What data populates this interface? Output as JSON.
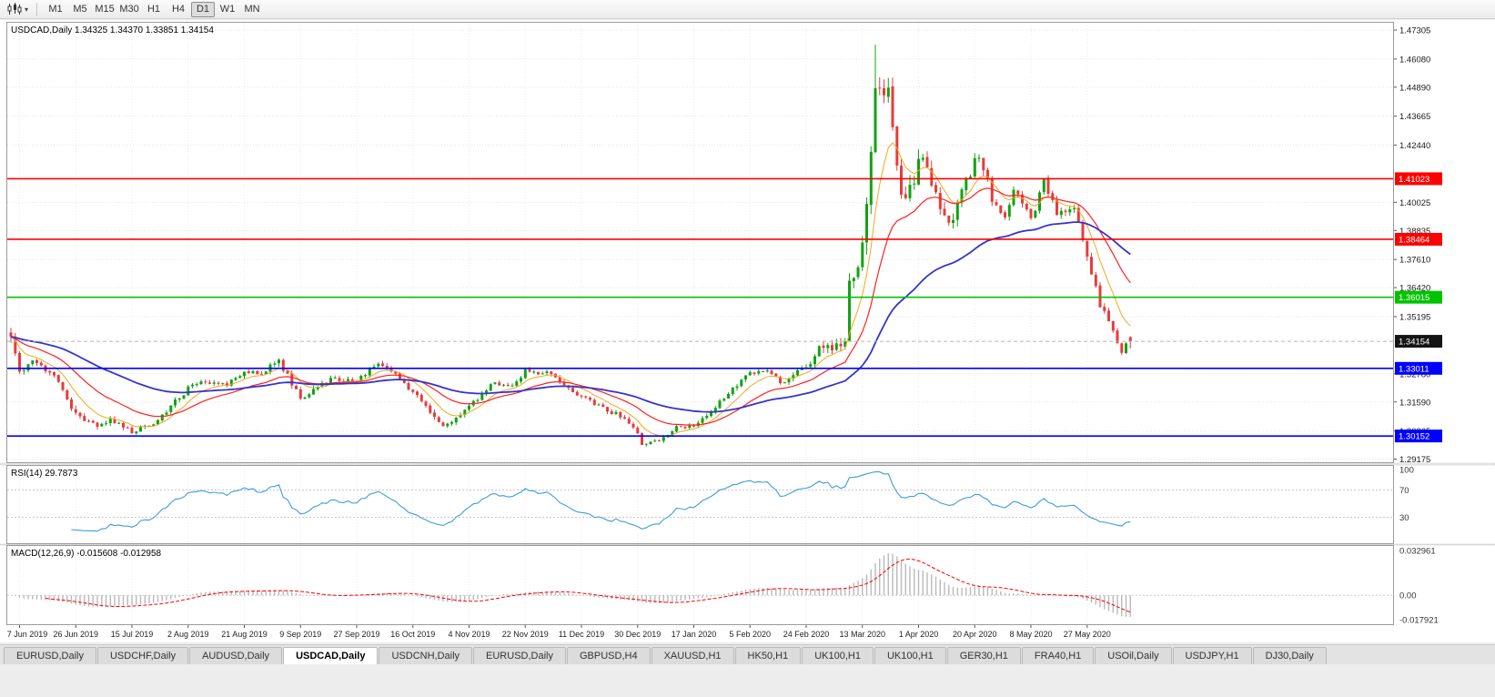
{
  "toolbar": {
    "timeframes": [
      {
        "label": "M1"
      },
      {
        "label": "M5"
      },
      {
        "label": "M15"
      },
      {
        "label": "M30"
      },
      {
        "label": "H1"
      },
      {
        "label": "H4"
      },
      {
        "label": "D1",
        "active": true
      },
      {
        "label": "W1"
      },
      {
        "label": "MN"
      }
    ]
  },
  "tabbar": {
    "tabs": [
      {
        "label": "EURUSD,Daily"
      },
      {
        "label": "USDCHF,Daily"
      },
      {
        "label": "AUDUSD,Daily"
      },
      {
        "label": "USDCAD,Daily",
        "active": true
      },
      {
        "label": "USDCNH,Daily"
      },
      {
        "label": "EURUSD,Daily"
      },
      {
        "label": "GBPUSD,H4"
      },
      {
        "label": "XAUUSD,H1"
      },
      {
        "label": "HK50,H1"
      },
      {
        "label": "UK100,H1"
      },
      {
        "label": "UK100,H1"
      },
      {
        "label": "GER30,H1"
      },
      {
        "label": "FRA40,H1"
      },
      {
        "label": "USOil,Daily"
      },
      {
        "label": "USDJPY,H1"
      },
      {
        "label": "DJ30,Daily"
      }
    ]
  },
  "chart_data": {
    "type": "candlestick",
    "symbol_header": "USDCAD,Daily",
    "ohlc": {
      "open": "1.34325",
      "high": "1.34370",
      "low": "1.33851",
      "close": "1.34154"
    },
    "x_labels": [
      "7 Jun 2019",
      "26 Jun 2019",
      "15 Jul 2019",
      "2 Aug 2019",
      "21 Aug 2019",
      "9 Sep 2019",
      "27 Sep 2019",
      "16 Oct 2019",
      "4 Nov 2019",
      "22 Nov 2019",
      "11 Dec 2019",
      "30 Dec 2019",
      "17 Jan 2020",
      "5 Feb 2020",
      "24 Feb 2020",
      "13 Mar 2020",
      "1 Apr 2020",
      "20 Apr 2020",
      "8 May 2020",
      "27 May 2020"
    ],
    "y_axis": {
      "ticks": [
        "1.47305",
        "1.46080",
        "1.44890",
        "1.43665",
        "1.42440",
        "1.40025",
        "1.38835",
        "1.37610",
        "1.36420",
        "1.35195",
        "1.32780",
        "1.31590",
        "1.30365",
        "1.29175"
      ],
      "view_range": [
        1.29043,
        1.47613
      ]
    },
    "hlines": [
      {
        "price": "1.41023",
        "color": "#ff0000"
      },
      {
        "price": "1.38464",
        "color": "#ff0000"
      },
      {
        "price": "1.36015",
        "color": "#00c400"
      },
      {
        "price": "1.33011",
        "color": "#0000ff"
      },
      {
        "price": "1.30152",
        "color": "#0000ff"
      }
    ],
    "current_price": {
      "value": "1.34154",
      "box_color": "#141414"
    },
    "candles": {
      "count": 260,
      "bull_color": "#12a212",
      "bear_color": "#e63c3c",
      "last_ohlc": [
        1.34325,
        1.3437,
        1.33851,
        1.34154
      ],
      "spike": {
        "index": 200,
        "high": 1.4668
      },
      "anchors": [
        [
          0,
          1.345,
          0.0045
        ],
        [
          2,
          1.329,
          0.0045
        ],
        [
          5,
          1.333,
          0.003
        ],
        [
          10,
          1.328,
          0.003
        ],
        [
          15,
          1.3105,
          0.003
        ],
        [
          20,
          1.305,
          0.0025
        ],
        [
          23,
          1.3085,
          0.0025
        ],
        [
          28,
          1.3035,
          0.0022
        ],
        [
          33,
          1.307,
          0.0022
        ],
        [
          38,
          1.316,
          0.0025
        ],
        [
          41,
          1.3215,
          0.0025
        ],
        [
          45,
          1.3245,
          0.0022
        ],
        [
          50,
          1.323,
          0.0022
        ],
        [
          54,
          1.329,
          0.0025
        ],
        [
          58,
          1.3285,
          0.0025
        ],
        [
          62,
          1.3335,
          0.003
        ],
        [
          67,
          1.317,
          0.003
        ],
        [
          72,
          1.323,
          0.0025
        ],
        [
          75,
          1.326,
          0.0022
        ],
        [
          80,
          1.3245,
          0.0022
        ],
        [
          85,
          1.333,
          0.0025
        ],
        [
          89,
          1.328,
          0.0025
        ],
        [
          93,
          1.32,
          0.0025
        ],
        [
          100,
          1.306,
          0.0025
        ],
        [
          103,
          1.309,
          0.0022
        ],
        [
          106,
          1.314,
          0.0022
        ],
        [
          112,
          1.3245,
          0.0022
        ],
        [
          116,
          1.322,
          0.002
        ],
        [
          119,
          1.329,
          0.002
        ],
        [
          124,
          1.328,
          0.002
        ],
        [
          128,
          1.324,
          0.0022
        ],
        [
          132,
          1.318,
          0.0022
        ],
        [
          137,
          1.313,
          0.002
        ],
        [
          141,
          1.31,
          0.002
        ],
        [
          144,
          1.306,
          0.002
        ],
        [
          146,
          1.2985,
          0.0018
        ],
        [
          150,
          1.2995,
          0.0018
        ],
        [
          154,
          1.305,
          0.0018
        ],
        [
          158,
          1.3055,
          0.0018
        ],
        [
          163,
          1.314,
          0.002
        ],
        [
          168,
          1.323,
          0.0022
        ],
        [
          171,
          1.328,
          0.0022
        ],
        [
          175,
          1.3295,
          0.002
        ],
        [
          178,
          1.324,
          0.002
        ],
        [
          184,
          1.3305,
          0.0028
        ],
        [
          188,
          1.3405,
          0.004
        ],
        [
          191,
          1.339,
          0.004
        ],
        [
          193,
          1.342,
          0.005
        ],
        [
          194,
          1.366,
          0.007
        ],
        [
          196,
          1.376,
          0.008
        ],
        [
          197,
          1.383,
          0.009
        ],
        [
          198,
          1.403,
          0.01
        ],
        [
          199,
          1.423,
          0.011
        ],
        [
          200,
          1.45,
          0.012
        ],
        [
          201,
          1.452,
          0.011
        ],
        [
          202,
          1.444,
          0.01
        ],
        [
          203,
          1.446,
          0.009
        ],
        [
          206,
          1.4,
          0.009
        ],
        [
          208,
          1.406,
          0.008
        ],
        [
          211,
          1.42,
          0.007
        ],
        [
          214,
          1.403,
          0.006
        ],
        [
          217,
          1.39,
          0.0055
        ],
        [
          220,
          1.404,
          0.005
        ],
        [
          224,
          1.421,
          0.005
        ],
        [
          227,
          1.402,
          0.0045
        ],
        [
          230,
          1.394,
          0.004
        ],
        [
          232,
          1.407,
          0.004
        ],
        [
          236,
          1.392,
          0.0038
        ],
        [
          239,
          1.409,
          0.0038
        ],
        [
          242,
          1.395,
          0.0035
        ],
        [
          246,
          1.3985,
          0.003
        ],
        [
          249,
          1.376,
          0.0035
        ],
        [
          252,
          1.357,
          0.0035
        ],
        [
          254,
          1.35,
          0.003
        ],
        [
          256,
          1.342,
          0.003
        ],
        [
          257,
          1.336,
          0.0028
        ],
        [
          258,
          1.3415,
          0.0025
        ],
        [
          259,
          1.34154,
          0.002
        ]
      ]
    },
    "moving_averages": [
      {
        "period": 8,
        "color": "#efa820",
        "width": 1
      },
      {
        "period": 21,
        "color": "#ff2020",
        "width": 1.2
      },
      {
        "period": 55,
        "color": "#3434cc",
        "width": 1.8
      }
    ],
    "rsi": {
      "title": "RSI(14)",
      "value": "29.7873",
      "period": 14,
      "levels": [
        100,
        70,
        30
      ],
      "line_color": "#3c9cdc"
    },
    "macd": {
      "title": "MACD(12,26,9)",
      "values": "-0.015608 -0.012958",
      "fast": 12,
      "slow": 26,
      "signal": 9,
      "axis_labels": [
        "0.032961",
        "0.00",
        "-0.017921"
      ],
      "view_range": [
        -0.017921,
        0.032961
      ],
      "hist_color": "#b9b9b9",
      "signal_color": "#ff0000"
    }
  }
}
